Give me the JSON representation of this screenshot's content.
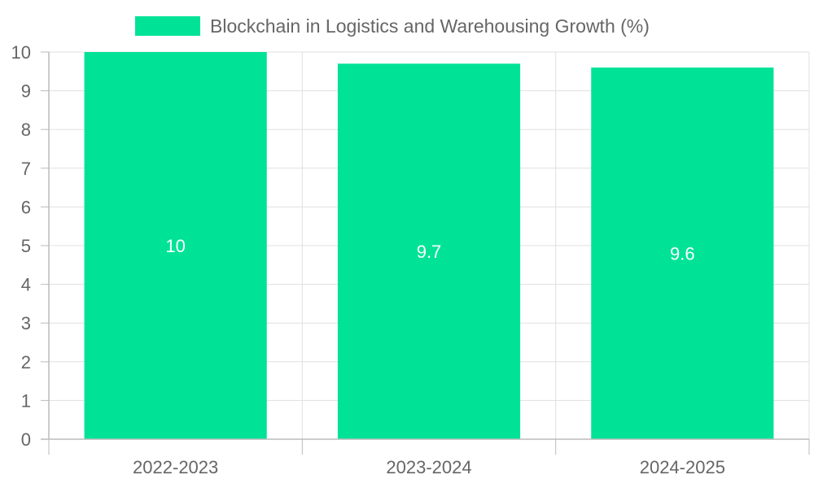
{
  "chart_data": {
    "type": "bar",
    "categories": [
      "2022-2023",
      "2023-2024",
      "2024-2025"
    ],
    "series": [
      {
        "name": "Blockchain in Logistics and Warehousing Growth (%)",
        "values": [
          10,
          9.7,
          9.6
        ]
      }
    ],
    "data_labels": [
      "10",
      "9.7",
      "9.6"
    ],
    "y_ticks": [
      "0",
      "1",
      "2",
      "3",
      "4",
      "5",
      "6",
      "7",
      "8",
      "9",
      "10"
    ],
    "ylim": [
      0,
      10
    ],
    "grid": true,
    "legend_position": "top",
    "colors": {
      "bar": "#00e396",
      "grid": "#e0e0e0",
      "axis": "#bbbbbb",
      "text": "#666666",
      "data_label": "#ffffff"
    }
  }
}
